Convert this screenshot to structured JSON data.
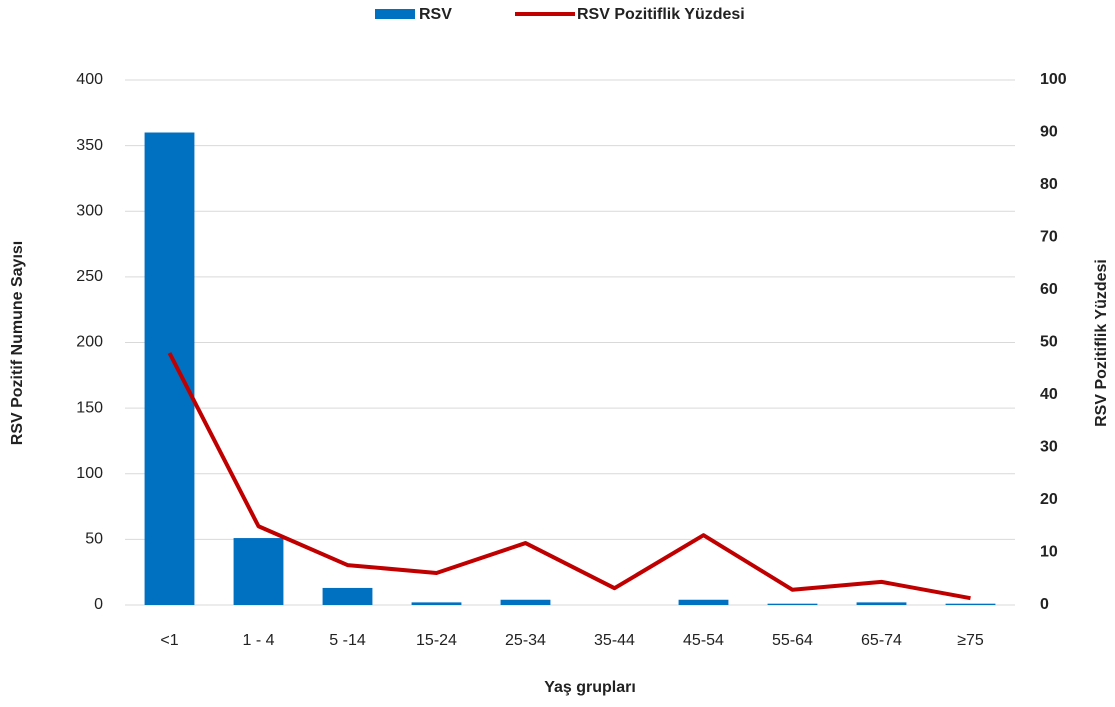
{
  "chart_data": {
    "type": "bar-line",
    "xlabel": "Yaş grupları",
    "ylabel": "RSV  Pozitif Numune Sayısı",
    "y2label": "RSV Pozitiflik Yüzdesi",
    "categories": [
      "<1",
      "1 - 4",
      "5 -14",
      "15-24",
      "25-34",
      "35-44",
      "45-54",
      "55-64",
      "65-74",
      "≥75"
    ],
    "series": [
      {
        "name": "RSV",
        "type": "bar",
        "color": "#0070c0",
        "values": [
          360,
          51,
          13,
          2,
          4,
          0,
          4,
          1,
          2,
          1
        ]
      },
      {
        "name": "RSV Pozitiflik Yüzdesi",
        "type": "line",
        "axis": "y2",
        "color": "#c00000",
        "values": [
          48,
          15,
          7.6,
          6.1,
          11.8,
          3.2,
          13.3,
          2.9,
          4.4,
          1.3
        ]
      }
    ],
    "ylim": [
      0,
      400
    ],
    "yticks": [
      0,
      50,
      100,
      150,
      200,
      250,
      300,
      350,
      400
    ],
    "y2lim": [
      0,
      100
    ],
    "y2ticks": [
      0,
      10,
      20,
      30,
      40,
      50,
      60,
      70,
      80,
      90,
      100
    ],
    "grid": true,
    "legend": "top"
  }
}
